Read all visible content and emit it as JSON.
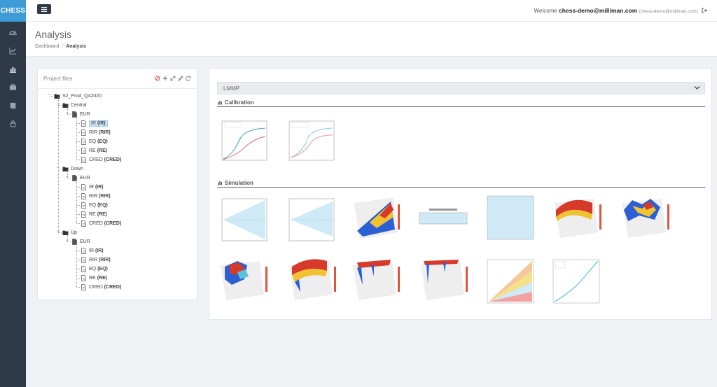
{
  "app": {
    "brand": "CHESS",
    "nav_icons": [
      "dashboard-icon",
      "line-chart-icon",
      "bar-chart-icon",
      "briefcase-icon",
      "book-icon",
      "lock-icon"
    ]
  },
  "header": {
    "welcome_prefix": "Welcome",
    "user": "chess-demo@milliman.com",
    "user_email_small": "(chess-demo@milliman.com)"
  },
  "page": {
    "title": "Analysis",
    "breadcrumb": {
      "home": "Dashboard",
      "separator": "/",
      "current": "Analysis"
    }
  },
  "files": {
    "title": "Project files",
    "root": "S2_Prod_Q42020",
    "scenarios": [
      {
        "name": "Central",
        "currency": "EUR",
        "items": [
          {
            "label": "IR",
            "code": "(IR)",
            "selected": true
          },
          {
            "label": "RIR",
            "code": "(RIR)"
          },
          {
            "label": "EQ",
            "code": "(EQ)"
          },
          {
            "label": "RE",
            "code": "(RE)"
          },
          {
            "label": "CRED",
            "code": "(CRED)"
          }
        ]
      },
      {
        "name": "Down",
        "currency": "EUR",
        "items": [
          {
            "label": "IR",
            "code": "(IR)"
          },
          {
            "label": "RIR",
            "code": "(RIR)"
          },
          {
            "label": "EQ",
            "code": "(EQ)"
          },
          {
            "label": "RE",
            "code": "(RE)"
          },
          {
            "label": "CRED",
            "code": "(CRED)"
          }
        ]
      },
      {
        "name": "Up",
        "currency": "EUR",
        "items": [
          {
            "label": "IR",
            "code": "(IR)"
          },
          {
            "label": "RIR",
            "code": "(RIR)"
          },
          {
            "label": "EQ",
            "code": "(EQ)"
          },
          {
            "label": "RE",
            "code": "(RE)"
          },
          {
            "label": "CRED",
            "code": "(CRED)"
          }
        ]
      }
    ]
  },
  "main": {
    "model": "LMMP",
    "calibration_title": "Calibration",
    "simulation_title": "Simulation"
  },
  "colors": {
    "sidebar": "#2f3a48",
    "brand": "#3d9bd6",
    "selected": "#cde6f7"
  }
}
